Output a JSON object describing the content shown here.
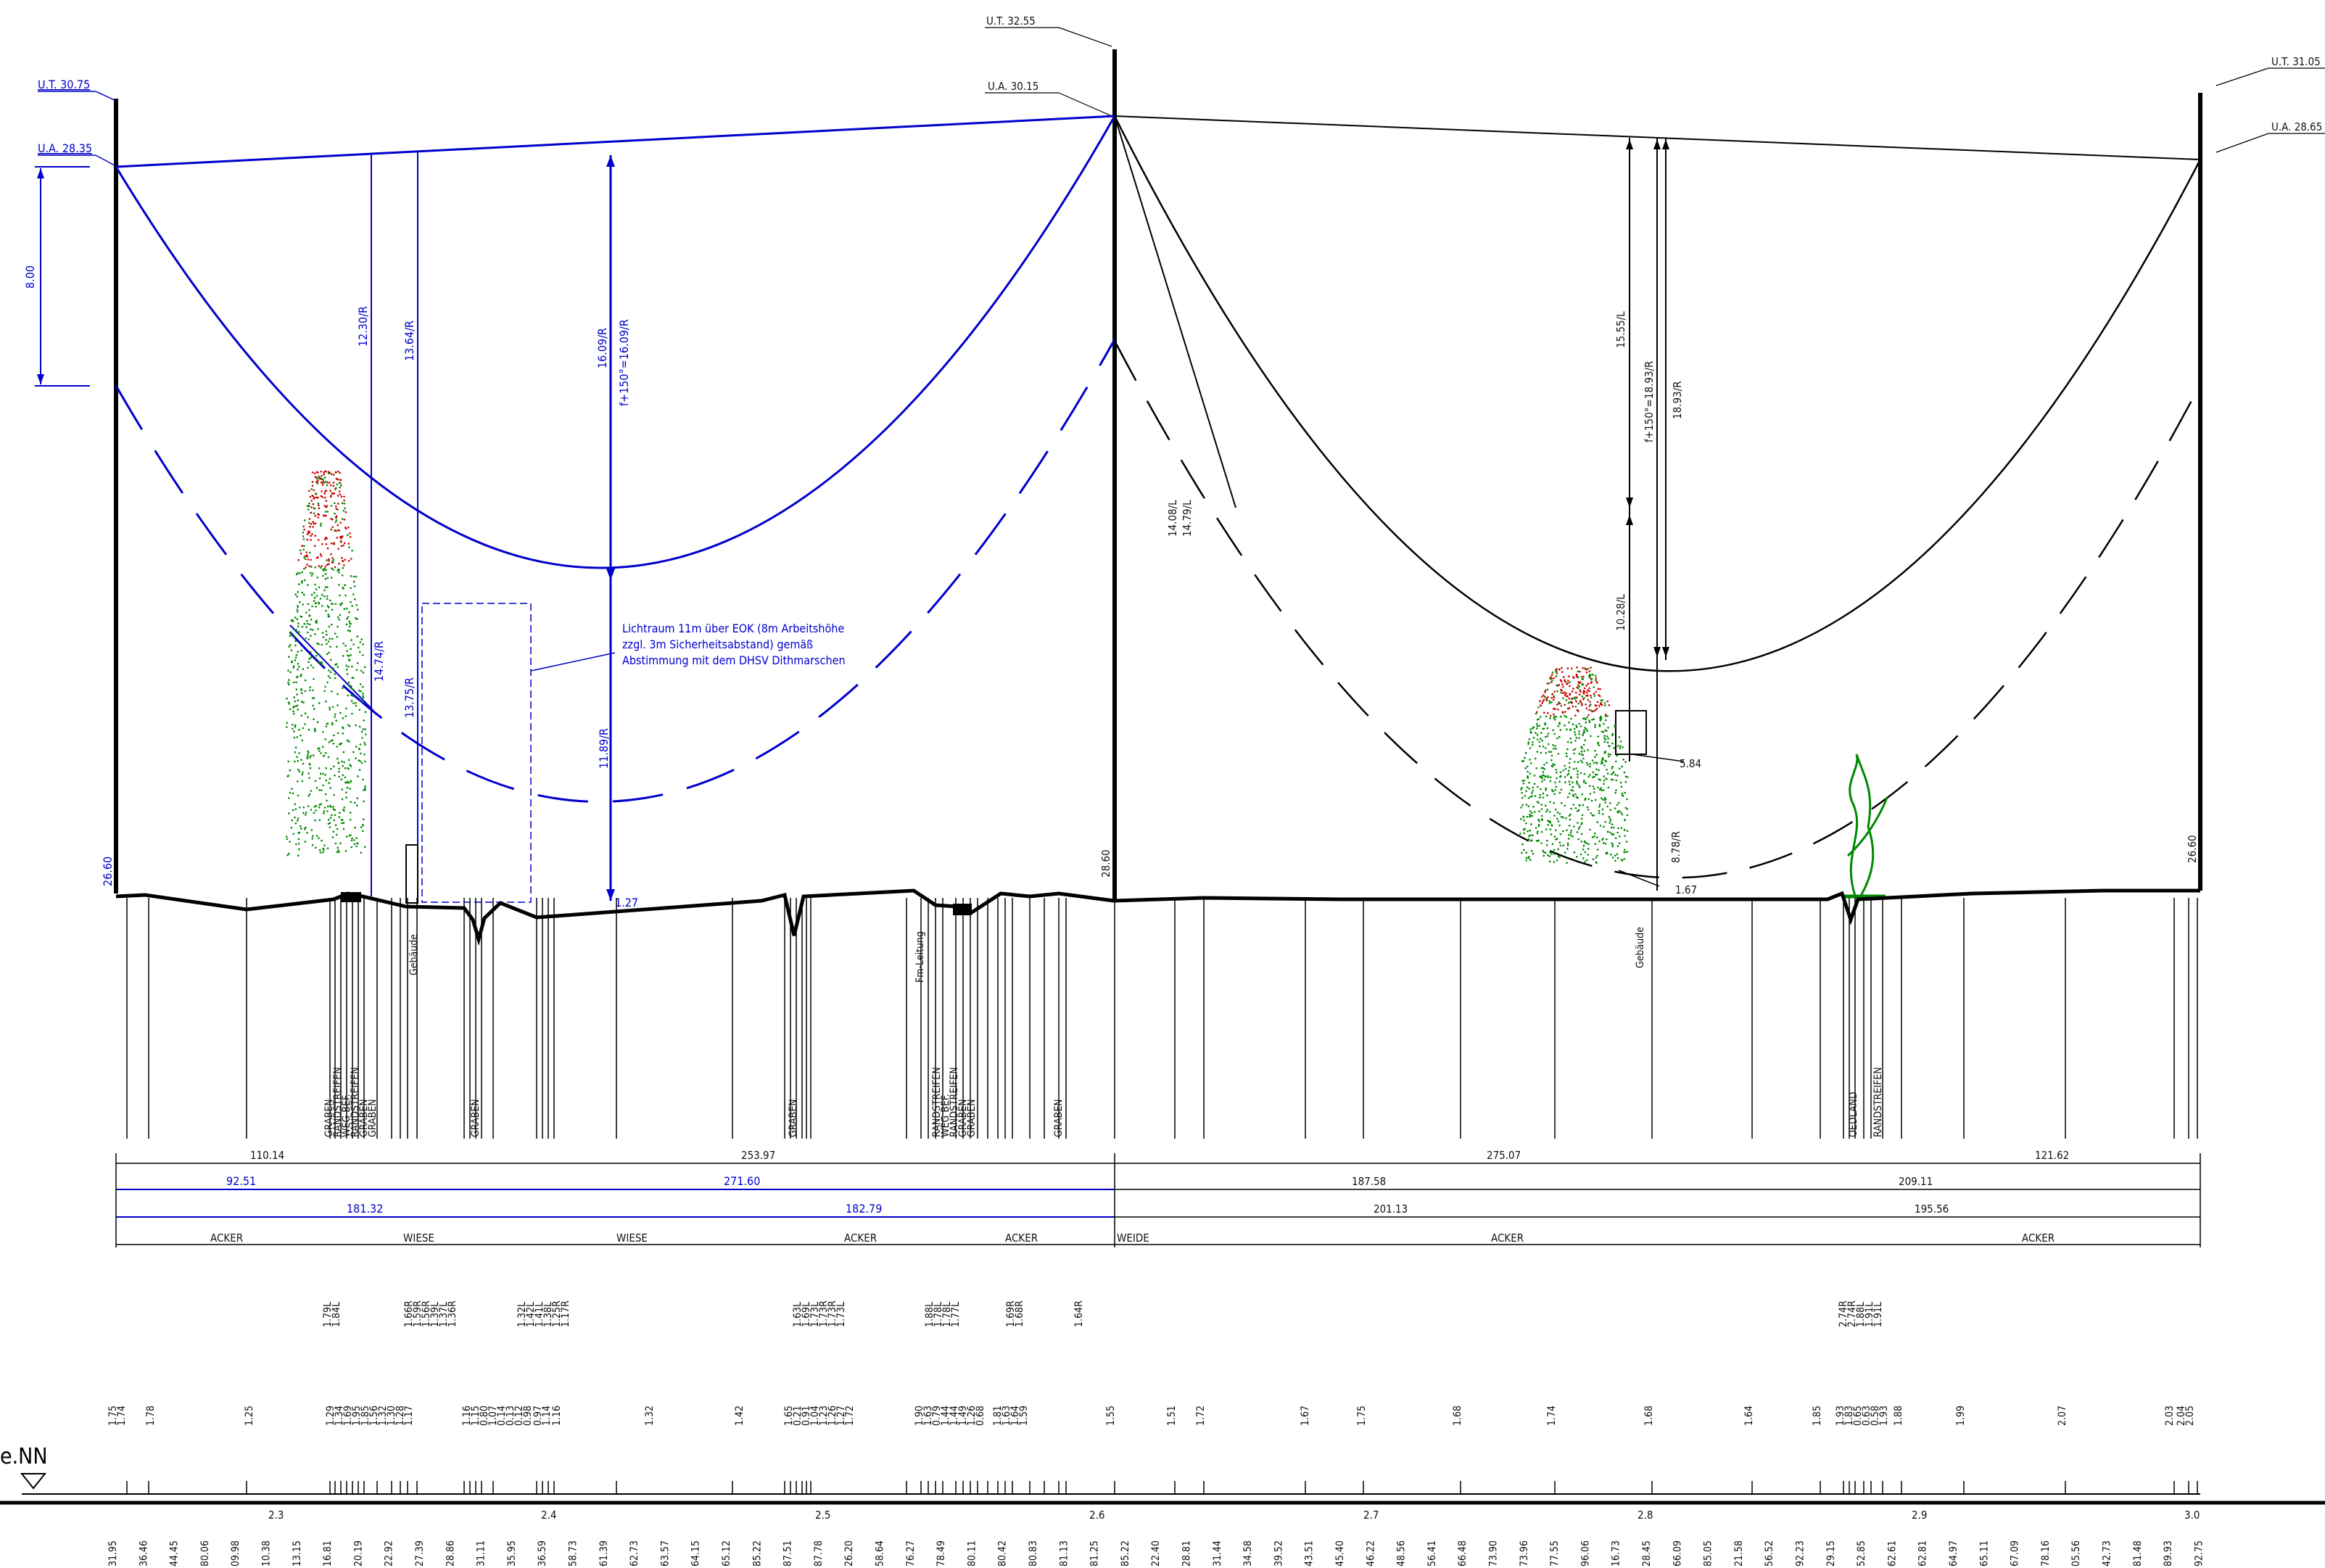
{
  "masts": {
    "left": {
      "ut": "U.T. 30.75",
      "ua": "U.A. 28.35",
      "ground": "26.60"
    },
    "middle": {
      "ut": "U.T. 32.55",
      "ua": "U.A. 30.15",
      "ground": "28.60"
    },
    "right": {
      "ut": "U.T. 31.05",
      "ua": "U.A. 28.65",
      "ground": "26.60"
    }
  },
  "left_span": {
    "dim_8": "8.00",
    "sag_labels": [
      "12.30/R",
      "13.64/R",
      "16.09/R",
      "f+150°=16.09/R",
      "14.74/R",
      "13.75/R",
      "11.89/R",
      "1.27"
    ],
    "note": [
      "Lichtraum 11m über EOK (8m Arbeitshöhe",
      "zzgl. 3m Sicherheitsabstand) gemäß",
      "Abstimmung mit dem DHSV Dithmarschen"
    ]
  },
  "right_span": {
    "sag_labels": [
      "15.55/L",
      "f+150°=18.93/R",
      "18.93/R",
      "10.28/L",
      "14.08/L",
      "14.79/L",
      "5.84",
      "8.78/R",
      "1.67"
    ]
  },
  "vertical_labels": [
    "Gebäude",
    "Fm-Leitung",
    "Gebäude"
  ],
  "land_labels": [
    "GRABEN",
    "RANDSTREIFEN",
    "WEG BEF.",
    "RANDSTREIFEN",
    "GRABEN",
    "GRABEN",
    "GRABEN",
    "GRABEN",
    "RANDSTREIFEN",
    "WEG BEF.",
    "RANDSTREIFEN",
    "GRABEN",
    "GRABEN",
    "GRABEN",
    "OEDLAND",
    "RANDSTREIFEN"
  ],
  "dims": {
    "row1": [
      "110.14",
      "253.97",
      "275.07",
      "121.62"
    ],
    "row2": [
      "92.51",
      "271.60",
      "187.58",
      "209.11"
    ],
    "row3": [
      "181.32",
      "182.79",
      "201.13",
      "195.56"
    ]
  },
  "usage": [
    "ACKER",
    "WIESE",
    "WIESE",
    "ACKER",
    "ACKER",
    "WEIDE",
    "ACKER",
    "ACKER"
  ],
  "clearance_groups": [
    "1.79L 1.84L",
    "1.66R 1.59R 1.56R 1.39L 1.37L 1.36R",
    "1.32L 1.42L 1.41L 1.38L 1.25R 1.17R",
    "1.63L 1.69L 1.73L 1.73R 1.73R 1.73L",
    "1.88L 1.78L 1.78L 1.77L",
    "1.69R 1.68R",
    "1.64R",
    "2.74R 2.74R 1.88L 1.91L 1.91L"
  ],
  "heights": [
    "1.75",
    "1.74",
    "1.78",
    "1.25",
    "1.29",
    "1.34",
    "1.69",
    "1.95",
    "1.85",
    "1.56",
    "1.32",
    "1.30",
    "1.28",
    "1.17",
    "1.16",
    "1.15",
    "0.80",
    "1.07",
    "0.14",
    "0.13",
    "0.12",
    "0.98",
    "0.97",
    "1.14",
    "1.16",
    "1.32",
    "1.42",
    "1.65",
    "0.21",
    "0.91",
    "1.04",
    "1.23",
    "1.26",
    "1.27",
    "1.72",
    "1.90",
    "1.63",
    "0.79",
    "1.44",
    "1.44",
    "1.49",
    "1.26",
    "0.68",
    "1.81",
    "1.63",
    "1.64",
    "1.59",
    "1.55",
    "1.51",
    "1.72",
    "1.67",
    "1.75",
    "1.68",
    "1.74",
    "1.68",
    "1.64",
    "1.85",
    "1.93",
    "1.83",
    "0.65",
    "0.63",
    "0.58",
    "1.93",
    "1.88",
    "1.99",
    "2.07",
    "2.03",
    "2.04",
    "2.05"
  ],
  "datum": "e.NN",
  "station_km": [
    "2.3",
    "2.4",
    "2.5",
    "2.6",
    "2.7",
    "2.8",
    "2.9",
    "3.0"
  ],
  "stations": [
    "31.95",
    "36.46",
    "44.45",
    "80.06",
    "09.98",
    "10.38",
    "13.15",
    "16.81",
    "20.19",
    "22.92",
    "27.39",
    "28.86",
    "31.11",
    "35.95",
    "36.59",
    "58.73",
    "61.39",
    "62.73",
    "63.57",
    "64.15",
    "65.12",
    "85.22",
    "87.51",
    "87.78",
    "26.20",
    "58.64",
    "76.27",
    "78.49",
    "80.11",
    "80.42",
    "80.83",
    "81.13",
    "81.25",
    "85.22",
    "22.40",
    "28.81",
    "31.44",
    "34.58",
    "39.52",
    "43.51",
    "45.40",
    "46.22",
    "48.56",
    "56.41",
    "66.48",
    "73.90",
    "73.96",
    "77.55",
    "96.06",
    "16.73",
    "28.45",
    "66.09",
    "85.05",
    "21.58",
    "56.52",
    "92.23",
    "29.15",
    "52.85",
    "62.61",
    "62.81",
    "64.97",
    "65.11",
    "67.09",
    "78.16",
    "05.56",
    "42.73",
    "81.48",
    "89.93",
    "92.75"
  ],
  "colors": {
    "blue": "#0000cc",
    "black": "#000000",
    "tree_red": "#cc0000",
    "tree_green": "#008800"
  }
}
